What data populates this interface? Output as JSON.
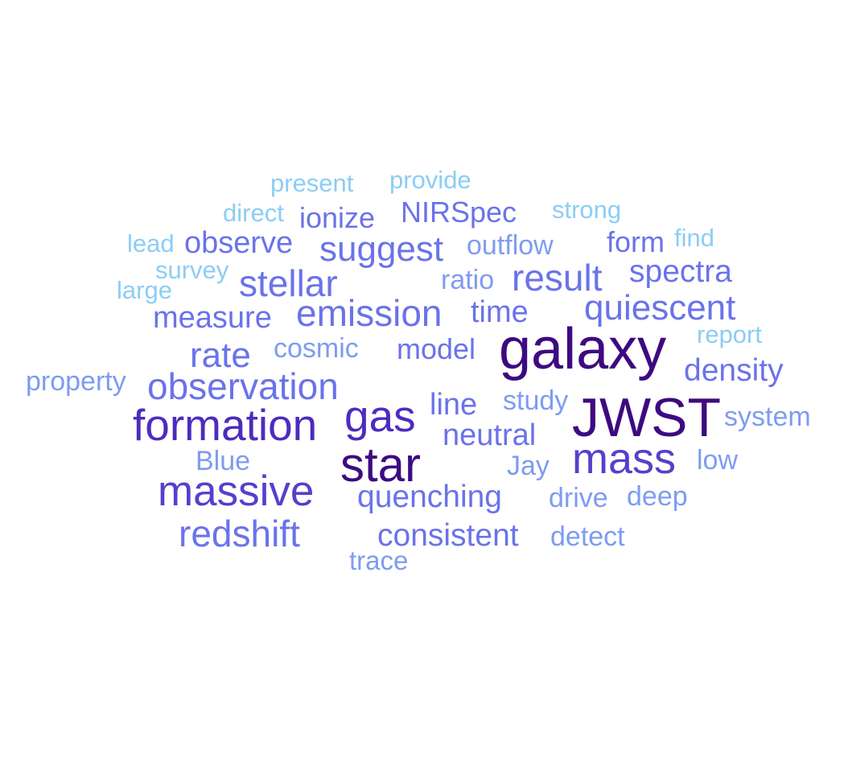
{
  "palette": {
    "background": "#ffffff",
    "darkest": "#3d0a80",
    "dark": "#4e2bbf",
    "mid": "#5f57e0",
    "blue": "#6a73ea",
    "light_blue": "#7e9cf0",
    "pale_blue": "#8ccdf5",
    "faint": "#96e0f8"
  },
  "words": [
    {
      "text": "galaxy",
      "color": "#3d0a80"
    },
    {
      "text": "JWST",
      "color": "#3d0a80"
    },
    {
      "text": "star",
      "color": "#3d0a80"
    },
    {
      "text": "formation",
      "color": "#4e2bbf"
    },
    {
      "text": "massive",
      "color": "#5540cc"
    },
    {
      "text": "gas",
      "color": "#4e2bbf"
    },
    {
      "text": "mass",
      "color": "#5540cc"
    },
    {
      "text": "observation",
      "color": "#6a73ea"
    },
    {
      "text": "redshift",
      "color": "#6a73ea"
    },
    {
      "text": "emission",
      "color": "#6a73ea"
    },
    {
      "text": "stellar",
      "color": "#6a73ea"
    },
    {
      "text": "result",
      "color": "#6a73ea"
    },
    {
      "text": "quiescent",
      "color": "#6a73ea"
    },
    {
      "text": "suggest",
      "color": "#6a73ea"
    },
    {
      "text": "rate",
      "color": "#6a73ea"
    },
    {
      "text": "spectra",
      "color": "#6a73ea"
    },
    {
      "text": "density",
      "color": "#6a73ea"
    },
    {
      "text": "consistent",
      "color": "#6a73ea"
    },
    {
      "text": "quenching",
      "color": "#6a73ea"
    },
    {
      "text": "measure",
      "color": "#6a73ea"
    },
    {
      "text": "observe",
      "color": "#6a73ea"
    },
    {
      "text": "neutral",
      "color": "#6a73ea"
    },
    {
      "text": "model",
      "color": "#6a73ea"
    },
    {
      "text": "NIRSpec",
      "color": "#6a73ea"
    },
    {
      "text": "ionize",
      "color": "#6a73ea"
    },
    {
      "text": "time",
      "color": "#6a73ea"
    },
    {
      "text": "line",
      "color": "#6a73ea"
    },
    {
      "text": "form",
      "color": "#6a73ea"
    },
    {
      "text": "outflow",
      "color": "#7e9cf0"
    },
    {
      "text": "ratio",
      "color": "#7e9cf0"
    },
    {
      "text": "cosmic",
      "color": "#7e9cf0"
    },
    {
      "text": "property",
      "color": "#7e9cf0"
    },
    {
      "text": "study",
      "color": "#7e9cf0"
    },
    {
      "text": "system",
      "color": "#7e9cf0"
    },
    {
      "text": "Blue",
      "color": "#7e9cf0"
    },
    {
      "text": "Jay",
      "color": "#7e9cf0"
    },
    {
      "text": "low",
      "color": "#7e9cf0"
    },
    {
      "text": "drive",
      "color": "#7e9cf0"
    },
    {
      "text": "deep",
      "color": "#7e9cf0"
    },
    {
      "text": "detect",
      "color": "#7e9cf0"
    },
    {
      "text": "trace",
      "color": "#7e9cf0"
    },
    {
      "text": "present",
      "color": "#8ccdf5"
    },
    {
      "text": "provide",
      "color": "#8ccdf5"
    },
    {
      "text": "direct",
      "color": "#8ccdf5"
    },
    {
      "text": "strong",
      "color": "#8ccdf5"
    },
    {
      "text": "lead",
      "color": "#8ccdf5"
    },
    {
      "text": "find",
      "color": "#8ccdf5"
    },
    {
      "text": "survey",
      "color": "#8ccdf5"
    },
    {
      "text": "large",
      "color": "#8ccdf5"
    },
    {
      "text": "report",
      "color": "#8ccdf5"
    }
  ]
}
